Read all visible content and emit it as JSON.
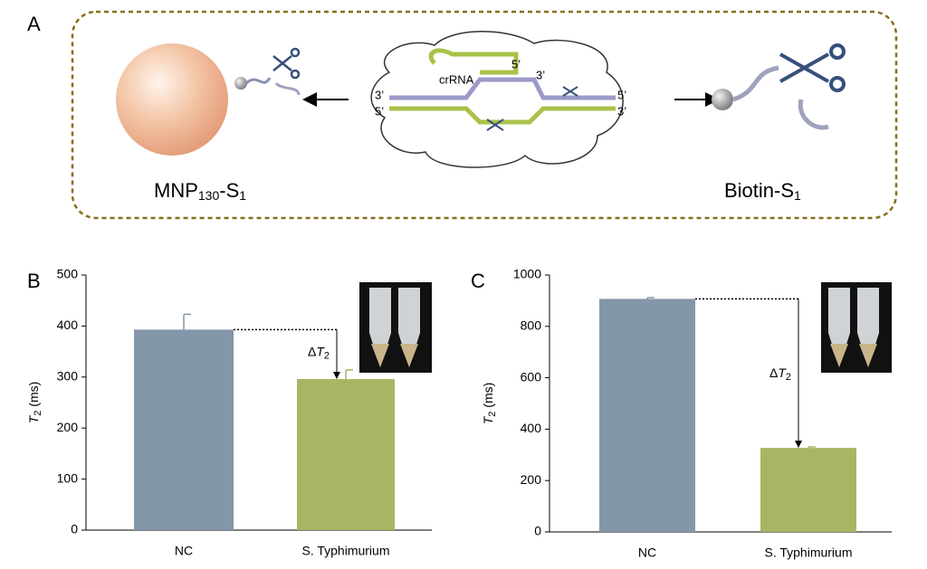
{
  "diagram": {
    "panel": "A",
    "crrna": "crRNA",
    "strand_ends": [
      "5’",
      "3’",
      "3’",
      "5’",
      "5’",
      "3’"
    ],
    "left_label": [
      "MNP",
      "130",
      "-S",
      "1"
    ],
    "right_label": [
      "Biotin-S",
      "1"
    ]
  },
  "chart_data": [
    {
      "type": "bar",
      "panel": "B",
      "y_label": [
        "T",
        "2",
        " (ms)"
      ],
      "categories": [
        "NC",
        "S. Typhimurium"
      ],
      "values": [
        393,
        296
      ],
      "errors": [
        30,
        18
      ],
      "colors": [
        "#8496a9",
        "#a9b563"
      ],
      "ylim": [
        0,
        500
      ],
      "yticks": [
        0,
        100,
        200,
        300,
        400,
        500
      ],
      "annotation": [
        "Δ",
        "T",
        "2"
      ]
    },
    {
      "type": "bar",
      "panel": "C",
      "y_label": [
        "T",
        "2",
        " (ms)"
      ],
      "categories": [
        "NC",
        "S. Typhimurium"
      ],
      "values": [
        907,
        327
      ],
      "errors": [
        5,
        4
      ],
      "colors": [
        "#8496a9",
        "#a9b563"
      ],
      "ylim": [
        0,
        1000
      ],
      "yticks": [
        0,
        200,
        400,
        600,
        800,
        1000
      ],
      "annotation": [
        "Δ",
        "T",
        "2"
      ]
    }
  ]
}
